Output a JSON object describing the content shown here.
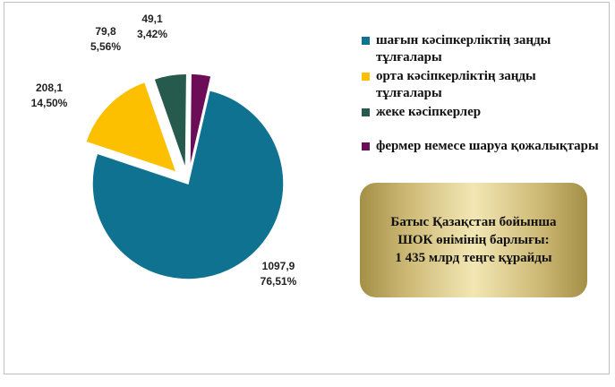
{
  "chart_data": {
    "type": "pie",
    "title": "",
    "slices": [
      {
        "label": "шағын кәсіпкерліктің заңды тұлғалары",
        "value": 1097.9,
        "value_text": "1097,9",
        "percent": "76,51%",
        "color": "#0f7290"
      },
      {
        "label": "орта кәсіпкерліктің заңды тұлғалары",
        "value": 208.1,
        "value_text": "208,1",
        "percent": "14,50%",
        "color": "#fcc000"
      },
      {
        "label": "жеке кәсіпкерлер",
        "value": 79.8,
        "value_text": "79,8",
        "percent": "5,56%",
        "color": "#265a4c"
      },
      {
        "label": "фермер немесе шаруа қожалықтары",
        "value": 49.1,
        "value_text": "49,1",
        "percent": "3,42%",
        "color": "#6b0d57"
      }
    ],
    "legend_position": "right",
    "exploded": true
  },
  "info_box": {
    "lines": [
      "Батыс Қазақстан бойынша",
      "ШОК өнімінің барлығы:",
      "1 435 млрд теңге құрайды"
    ]
  }
}
